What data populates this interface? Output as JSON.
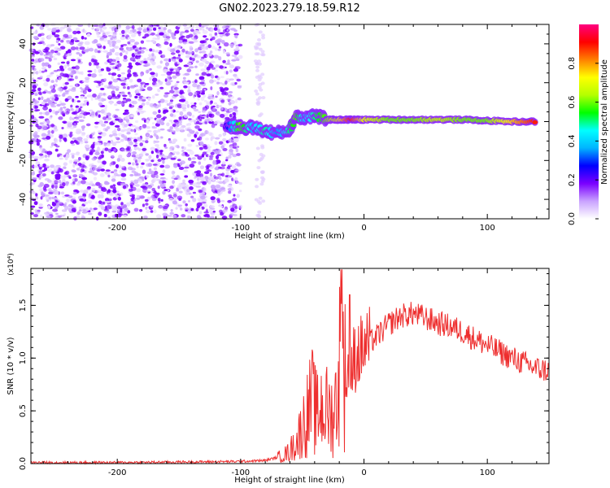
{
  "title": "GN02.2023.279.18.59.R12",
  "chart_data": [
    {
      "type": "heatmap",
      "xlabel": "Height of straight line (km)",
      "ylabel": "Frequency (Hz)",
      "xlim": [
        -270,
        150
      ],
      "ylim": [
        -50,
        50
      ],
      "xticks": [
        -200,
        -100,
        0,
        100
      ],
      "yticks": [
        -40,
        -20,
        0,
        20,
        40
      ],
      "noise_region_x": [
        -270,
        -100
      ],
      "signal_track": [
        {
          "x": -112,
          "y": -2,
          "v": 0.2
        },
        {
          "x": -100,
          "y": -3,
          "v": 0.6
        },
        {
          "x": -90,
          "y": -3,
          "v": 0.4
        },
        {
          "x": -80,
          "y": -5,
          "v": 0.5
        },
        {
          "x": -70,
          "y": -6,
          "v": 0.35
        },
        {
          "x": -60,
          "y": -4,
          "v": 0.5
        },
        {
          "x": -55,
          "y": 3,
          "v": 0.6
        },
        {
          "x": -48,
          "y": 2,
          "v": 0.4
        },
        {
          "x": -40,
          "y": 3,
          "v": 0.5
        },
        {
          "x": -30,
          "y": 1,
          "v": 0.6
        },
        {
          "x": -20,
          "y": 1,
          "v": 0.7
        },
        {
          "x": -10,
          "y": 1,
          "v": 0.9
        },
        {
          "x": 0,
          "y": 1,
          "v": 0.7
        },
        {
          "x": 20,
          "y": 1,
          "v": 0.6
        },
        {
          "x": 40,
          "y": 1,
          "v": 0.6
        },
        {
          "x": 60,
          "y": 1,
          "v": 0.65
        },
        {
          "x": 80,
          "y": 1,
          "v": 0.6
        },
        {
          "x": 100,
          "y": 0.5,
          "v": 0.6
        },
        {
          "x": 120,
          "y": 0,
          "v": 0.75
        },
        {
          "x": 140,
          "y": 0,
          "v": 0.9
        }
      ],
      "colorbar": {
        "label": "Normalized spectral amplitude",
        "range": [
          0,
          1
        ],
        "ticks": [
          "0.0",
          "0.2",
          "0.4",
          "0.6",
          "0.8"
        ],
        "colors": [
          "#ffffff",
          "#c9a2ff",
          "#7a00ff",
          "#0000ff",
          "#00b4ff",
          "#00ffff",
          "#00ff00",
          "#b4ff00",
          "#ffff00",
          "#ff8000",
          "#ff0000",
          "#ff0080"
        ]
      }
    },
    {
      "type": "line",
      "xlabel": "Height of straight line (km)",
      "ylabel": "SNR (10 * v/v)",
      "multiplier": "(x10⁴)",
      "xlim": [
        -270,
        150
      ],
      "ylim": [
        0,
        1.85
      ],
      "xticks": [
        -200,
        -100,
        0,
        100
      ],
      "yticks": [
        "0.0",
        "0.5",
        "1.0",
        "1.5"
      ],
      "color": "#ee2e2e",
      "series": [
        {
          "x": [
            -270,
            -200,
            -150,
            -100,
            -80,
            -70,
            -62,
            -55,
            -50,
            -45,
            -42,
            -38,
            -35,
            -30,
            -25,
            -22,
            -20,
            -17,
            -15,
            -12,
            -10,
            -5,
            0,
            5,
            10,
            20,
            30,
            40,
            50,
            60,
            70,
            80,
            90,
            100,
            110,
            120,
            130,
            140,
            150
          ],
          "y": [
            0.01,
            0.01,
            0.015,
            0.02,
            0.03,
            0.06,
            0.1,
            0.2,
            0.35,
            0.5,
            0.6,
            0.45,
            0.55,
            0.5,
            0.45,
            0.65,
            0.95,
            1.1,
            0.8,
            0.9,
            0.95,
            1.05,
            1.1,
            1.15,
            1.2,
            1.32,
            1.4,
            1.42,
            1.38,
            1.33,
            1.3,
            1.25,
            1.18,
            1.12,
            1.06,
            1.0,
            0.95,
            0.9,
            0.88
          ]
        }
      ]
    }
  ]
}
